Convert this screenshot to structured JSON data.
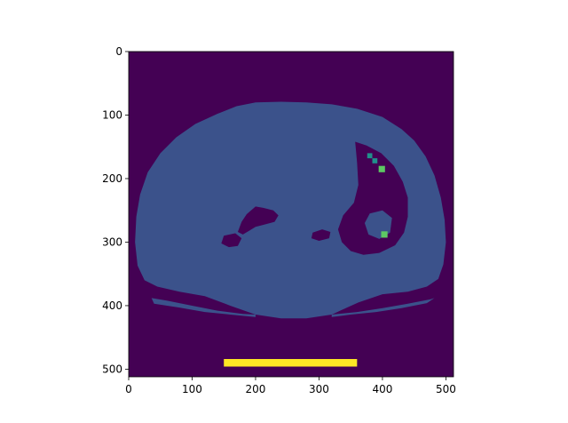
{
  "chart_data": {
    "type": "heatmap",
    "title": "",
    "xlabel": "",
    "ylabel": "",
    "xlim": [
      0,
      512
    ],
    "ylim": [
      512,
      0
    ],
    "x_ticks": [
      0,
      100,
      200,
      300,
      400,
      500
    ],
    "y_ticks": [
      0,
      100,
      200,
      300,
      400,
      500
    ],
    "x_tick_labels": [
      "0",
      "100",
      "200",
      "300",
      "400",
      "500"
    ],
    "y_tick_labels": [
      "0",
      "100",
      "200",
      "300",
      "400",
      "500"
    ],
    "grid": false,
    "colormap": "viridis",
    "levels": [
      {
        "value": 0,
        "color": "#440154"
      },
      {
        "value": 1,
        "color": "#3b528b"
      },
      {
        "value": 2,
        "color": "#21908c"
      },
      {
        "value": 3,
        "color": "#5dc863"
      },
      {
        "value": 4,
        "color": "#fde725"
      }
    ],
    "regions": {
      "background": {
        "value": 0,
        "polygon": [
          [
            0,
            0
          ],
          [
            512,
            0
          ],
          [
            512,
            512
          ],
          [
            0,
            512
          ]
        ]
      },
      "body": {
        "value": 1,
        "polygon": [
          [
            200,
            80
          ],
          [
            240,
            79
          ],
          [
            280,
            80
          ],
          [
            320,
            83
          ],
          [
            360,
            90
          ],
          [
            400,
            103
          ],
          [
            430,
            122
          ],
          [
            450,
            140
          ],
          [
            468,
            165
          ],
          [
            482,
            195
          ],
          [
            492,
            230
          ],
          [
            498,
            265
          ],
          [
            500,
            300
          ],
          [
            496,
            335
          ],
          [
            488,
            358
          ],
          [
            470,
            370
          ],
          [
            440,
            378
          ],
          [
            400,
            382
          ],
          [
            362,
            395
          ],
          [
            320,
            414
          ],
          [
            280,
            420
          ],
          [
            240,
            420
          ],
          [
            200,
            414
          ],
          [
            160,
            400
          ],
          [
            120,
            385
          ],
          [
            80,
            378
          ],
          [
            45,
            370
          ],
          [
            25,
            360
          ],
          [
            14,
            337
          ],
          [
            10,
            300
          ],
          [
            12,
            260
          ],
          [
            18,
            225
          ],
          [
            30,
            190
          ],
          [
            50,
            160
          ],
          [
            75,
            135
          ],
          [
            105,
            114
          ],
          [
            140,
            98
          ],
          [
            170,
            86
          ]
        ]
      },
      "table_left": {
        "value": 1,
        "polygon": [
          [
            36,
            388
          ],
          [
            60,
            392
          ],
          [
            100,
            400
          ],
          [
            140,
            408
          ],
          [
            180,
            413
          ],
          [
            200,
            414
          ],
          [
            200,
            418
          ],
          [
            160,
            414
          ],
          [
            120,
            410
          ],
          [
            80,
            403
          ],
          [
            40,
            397
          ]
        ]
      },
      "table_right": {
        "value": 1,
        "polygon": [
          [
            482,
            388
          ],
          [
            470,
            396
          ],
          [
            430,
            404
          ],
          [
            390,
            410
          ],
          [
            350,
            414
          ],
          [
            320,
            418
          ],
          [
            320,
            414
          ],
          [
            360,
            410
          ],
          [
            400,
            404
          ],
          [
            440,
            397
          ],
          [
            476,
            390
          ]
        ]
      },
      "lung_right": {
        "value": 0,
        "polygon": [
          [
            357,
            142
          ],
          [
            375,
            148
          ],
          [
            398,
            160
          ],
          [
            418,
            180
          ],
          [
            432,
            205
          ],
          [
            440,
            230
          ],
          [
            440,
            260
          ],
          [
            434,
            285
          ],
          [
            420,
            305
          ],
          [
            395,
            317
          ],
          [
            370,
            320
          ],
          [
            350,
            314
          ],
          [
            336,
            300
          ],
          [
            330,
            280
          ],
          [
            338,
            258
          ],
          [
            355,
            238
          ],
          [
            362,
            210
          ],
          [
            360,
            175
          ]
        ]
      },
      "right_vessels": {
        "value": 1,
        "polygon": [
          [
            380,
            255
          ],
          [
            400,
            250
          ],
          [
            415,
            262
          ],
          [
            412,
            285
          ],
          [
            395,
            295
          ],
          [
            378,
            288
          ],
          [
            372,
            270
          ]
        ]
      },
      "lung_left_upper": {
        "value": 0,
        "polygon": [
          [
            200,
            244
          ],
          [
            212,
            246
          ],
          [
            228,
            250
          ],
          [
            236,
            258
          ],
          [
            230,
            268
          ],
          [
            215,
            272
          ],
          [
            200,
            276
          ],
          [
            190,
            282
          ],
          [
            180,
            288
          ],
          [
            172,
            284
          ],
          [
            178,
            268
          ],
          [
            186,
            256
          ]
        ]
      },
      "lung_left_lower": {
        "value": 0,
        "polygon": [
          [
            150,
            290
          ],
          [
            168,
            286
          ],
          [
            178,
            294
          ],
          [
            172,
            306
          ],
          [
            158,
            308
          ],
          [
            146,
            302
          ]
        ]
      },
      "lung_mid_bits": {
        "value": 0,
        "polygon": [
          [
            290,
            285
          ],
          [
            305,
            280
          ],
          [
            318,
            284
          ],
          [
            316,
            294
          ],
          [
            300,
            298
          ],
          [
            288,
            294
          ]
        ]
      },
      "table_bar": {
        "value": 4,
        "polygon": [
          [
            150,
            484
          ],
          [
            360,
            484
          ],
          [
            360,
            496
          ],
          [
            150,
            496
          ]
        ]
      }
    },
    "patches": [
      {
        "value": 2,
        "x": 376,
        "y": 160,
        "w": 8,
        "h": 8
      },
      {
        "value": 2,
        "x": 384,
        "y": 168,
        "w": 8,
        "h": 8
      },
      {
        "value": 3,
        "x": 394,
        "y": 180,
        "w": 10,
        "h": 10
      },
      {
        "value": 3,
        "x": 398,
        "y": 283,
        "w": 10,
        "h": 10
      }
    ]
  }
}
